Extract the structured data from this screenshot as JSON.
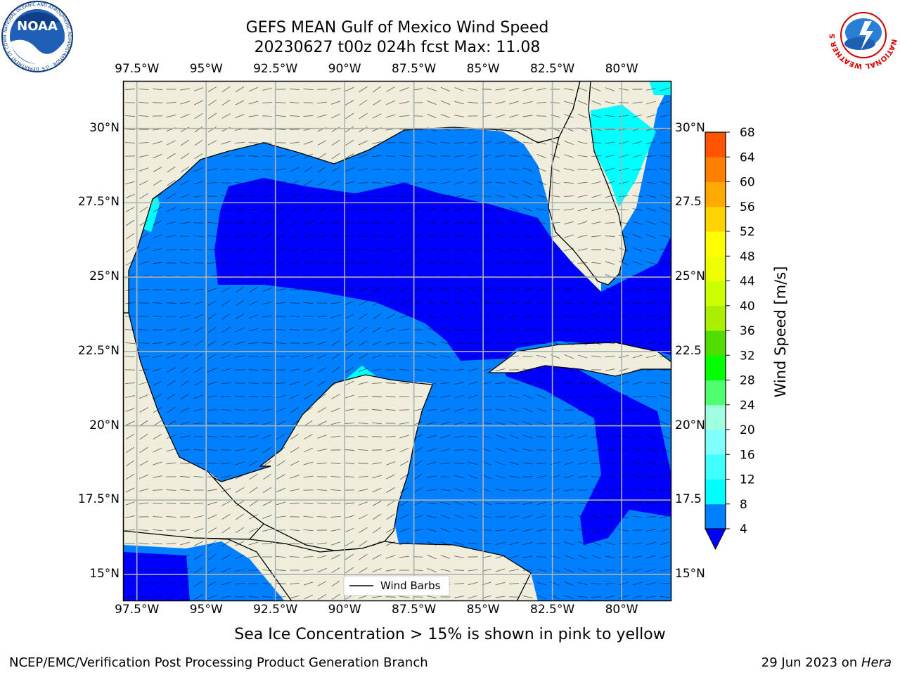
{
  "header": {
    "title_line1": "GEFS MEAN Gulf of Mexico Wind Speed",
    "title_line2": "20230627 t00z 024h fcst   Max: 11.08"
  },
  "map": {
    "lon_ticks": [
      "97.5°W",
      "95°W",
      "92.5°W",
      "90°W",
      "87.5°W",
      "85°W",
      "82.5°W",
      "80°W"
    ],
    "lat_ticks_left": [
      "30°N",
      "27.5°N",
      "25°N",
      "22.5°N",
      "20°N",
      "17.5°N",
      "15°N"
    ],
    "lat_ticks_right": [
      "30°N",
      "27.5",
      "25°N",
      "22.5",
      "20°N",
      "17.5",
      "15°N"
    ],
    "lon_values": [
      -97.5,
      -95,
      -92.5,
      -90,
      -87.5,
      -85,
      -82.5,
      -80
    ],
    "lat_values": [
      30,
      27.5,
      25,
      22.5,
      20,
      17.5,
      15
    ],
    "extent": {
      "lon_min": -98,
      "lon_max": -78.2,
      "lat_min": 14.1,
      "lat_max": 31.6
    },
    "legend_label": "Wind Barbs",
    "land_color": "#efeedc",
    "grid_color": "#b0b0b0"
  },
  "colorbar": {
    "label": "Wind Speed [m/s]",
    "ticks": [
      "68",
      "64",
      "60",
      "56",
      "52",
      "48",
      "44",
      "40",
      "36",
      "32",
      "28",
      "24",
      "20",
      "16",
      "12",
      "8",
      "4"
    ],
    "levels": [
      4,
      8,
      12,
      16,
      20,
      24,
      28,
      32,
      36,
      40,
      44,
      48,
      52,
      56,
      60,
      64,
      68
    ],
    "colors": [
      "#0080ff",
      "#00ffff",
      "#40ffff",
      "#80ffff",
      "#a0ffe0",
      "#50ff70",
      "#00ff00",
      "#50dd00",
      "#aaee00",
      "#ccff00",
      "#eeff00",
      "#ffff00",
      "#ffd400",
      "#ffaa00",
      "#ff8000",
      "#ff5500",
      "#ff2800",
      "#ff0000"
    ],
    "under_color": "#0000ff"
  },
  "annotations": {
    "sea_ice_note": "Sea Ice Concentration > 15% is shown in pink to yellow"
  },
  "footer": {
    "left": "NCEP/EMC/Verification Post Processing Product Generation Branch",
    "right_date": "29 Jun 2023 on ",
    "right_machine": "Hera"
  },
  "logos": {
    "noaa_text": "NOAA",
    "noaa_ring": "NATIONAL OCEANIC AND ATMOSPHERIC ADMINISTRATION · U.S. DEPARTMENT OF COMMERCE ·",
    "nws_ring": "NATIONAL WEATHER SERVICE"
  }
}
